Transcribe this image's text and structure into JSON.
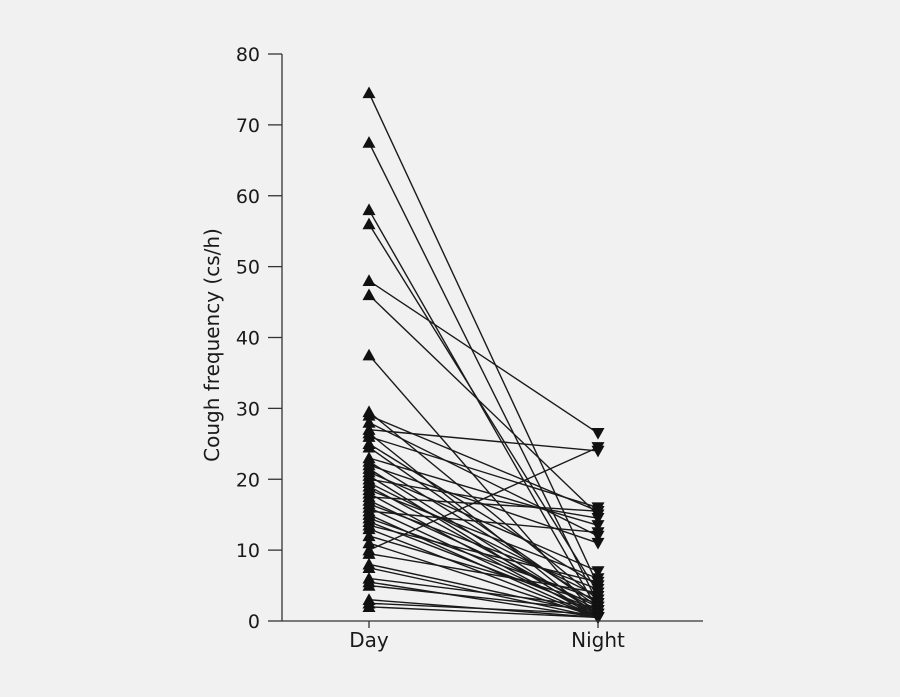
{
  "chart_data": {
    "type": "line",
    "title": "",
    "xlabel": "",
    "ylabel": "Cough frequency (cs/h)",
    "categories": [
      "Day",
      "Night"
    ],
    "ylim": [
      0,
      80
    ],
    "yticks": [
      0,
      10,
      20,
      30,
      40,
      50,
      60,
      70,
      80
    ],
    "grid": false,
    "legend": "none",
    "markers": {
      "Day": "triangle-up",
      "Night": "triangle-down"
    },
    "colors": {
      "line": "#1a1a1a",
      "marker": "#111111",
      "axis": "#333333",
      "background": "#f1f1f1"
    },
    "pairs": [
      [
        74.5,
        5.0
      ],
      [
        67.5,
        2.5
      ],
      [
        58.0,
        1.5
      ],
      [
        56.0,
        4.0
      ],
      [
        48.0,
        26.5
      ],
      [
        46.0,
        15.0
      ],
      [
        37.5,
        0.5
      ],
      [
        29.5,
        3.0
      ],
      [
        29.0,
        15.5
      ],
      [
        28.0,
        12.0
      ],
      [
        27.0,
        24.0
      ],
      [
        26.5,
        0.5
      ],
      [
        26.0,
        16.0
      ],
      [
        25.0,
        5.0
      ],
      [
        24.5,
        2.0
      ],
      [
        23.0,
        13.5
      ],
      [
        22.5,
        2.5
      ],
      [
        22.0,
        11.0
      ],
      [
        21.5,
        1.0
      ],
      [
        21.0,
        7.0
      ],
      [
        20.5,
        0.5
      ],
      [
        20.0,
        14.5
      ],
      [
        19.5,
        3.5
      ],
      [
        19.0,
        1.5
      ],
      [
        18.5,
        6.0
      ],
      [
        18.0,
        0.5
      ],
      [
        17.5,
        15.5
      ],
      [
        17.0,
        2.0
      ],
      [
        16.5,
        4.5
      ],
      [
        16.0,
        1.0
      ],
      [
        15.5,
        12.5
      ],
      [
        15.0,
        0.5
      ],
      [
        14.5,
        3.0
      ],
      [
        14.0,
        1.5
      ],
      [
        13.5,
        5.5
      ],
      [
        13.0,
        0.5
      ],
      [
        12.0,
        2.5
      ],
      [
        11.0,
        0.5
      ],
      [
        10.0,
        24.5
      ],
      [
        9.5,
        4.0
      ],
      [
        8.0,
        1.0
      ],
      [
        7.5,
        0.5
      ],
      [
        6.0,
        2.0
      ],
      [
        5.5,
        0.5
      ],
      [
        5.0,
        1.5
      ],
      [
        3.0,
        0.5
      ],
      [
        2.5,
        1.0
      ],
      [
        2.0,
        0.5
      ]
    ]
  }
}
